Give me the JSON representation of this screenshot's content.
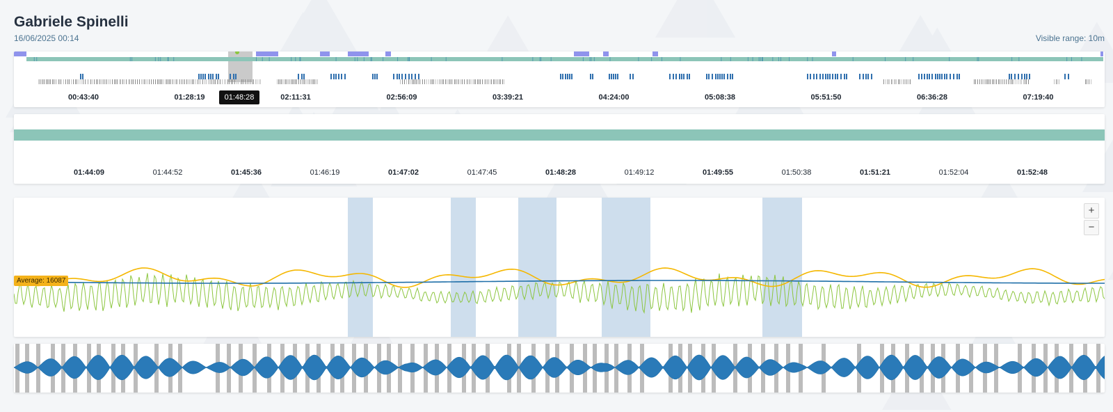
{
  "header": {
    "title": "Gabriele Spinelli",
    "datetime": "16/06/2025 00:14",
    "visible_range": "Visible range: 10m"
  },
  "overview": {
    "cursor_label": "01:48:28",
    "ticks": [
      {
        "label": "00:43:40",
        "bold": true
      },
      {
        "label": "01:28:19",
        "bold": true
      },
      {
        "label": "02:11:31",
        "bold": true
      },
      {
        "label": "02:56:09",
        "bold": true
      },
      {
        "label": "03:39:21",
        "bold": true
      },
      {
        "label": "04:24:00",
        "bold": true
      },
      {
        "label": "05:08:38",
        "bold": true
      },
      {
        "label": "05:51:50",
        "bold": true
      },
      {
        "label": "06:36:28",
        "bold": true
      },
      {
        "label": "07:19:40",
        "bold": true
      }
    ]
  },
  "detail": {
    "ticks": [
      {
        "label": "01:44:09",
        "bold": true
      },
      {
        "label": "01:44:52",
        "bold": false
      },
      {
        "label": "01:45:36",
        "bold": true
      },
      {
        "label": "01:46:19",
        "bold": false
      },
      {
        "label": "01:47:02",
        "bold": true
      },
      {
        "label": "01:47:45",
        "bold": false
      },
      {
        "label": "01:48:28",
        "bold": true
      },
      {
        "label": "01:49:12",
        "bold": false
      },
      {
        "label": "01:49:55",
        "bold": true
      },
      {
        "label": "01:50:38",
        "bold": false
      },
      {
        "label": "01:51:21",
        "bold": true
      },
      {
        "label": "01:52:04",
        "bold": false
      },
      {
        "label": "01:52:48",
        "bold": true
      }
    ]
  },
  "signal": {
    "average_label": "Average: 16087",
    "zoom_in": "+",
    "zoom_out": "−",
    "colors": {
      "raw": "#8cc63f",
      "envelope": "#f5b700",
      "average": "#1f6fa8",
      "band": "#c6d8ea"
    }
  }
}
